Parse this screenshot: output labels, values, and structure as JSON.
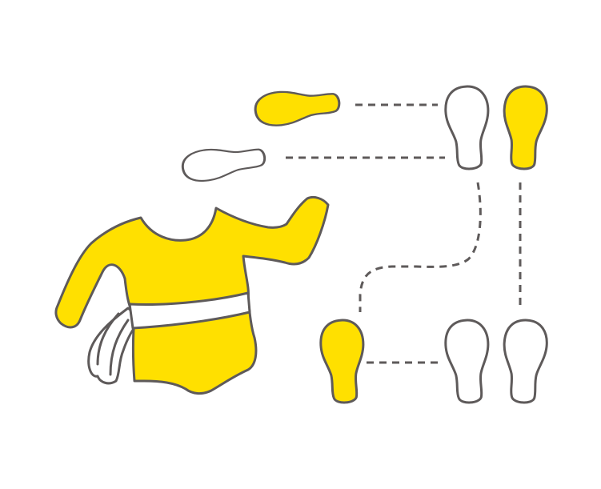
{
  "colors": {
    "accent": "#FFE000",
    "outline": "#5E5A5A",
    "empty": "#FFFFFF",
    "background": "#FFFFFF"
  },
  "icons": {
    "leotard": "leotard-icon",
    "belt": "belt-icon",
    "footprint": "footprint-icon"
  },
  "steps": [
    {
      "state": "left-foot-in-air",
      "foot": "left",
      "filled": true
    },
    {
      "state": "right-foot-in-air",
      "foot": "right",
      "filled": false
    },
    {
      "state": "stand-right-forward",
      "filled_foot": "right"
    },
    {
      "state": "step-left-forward",
      "filled_foot": "left"
    },
    {
      "state": "stand-both-feet",
      "filled_foot": "none"
    }
  ]
}
